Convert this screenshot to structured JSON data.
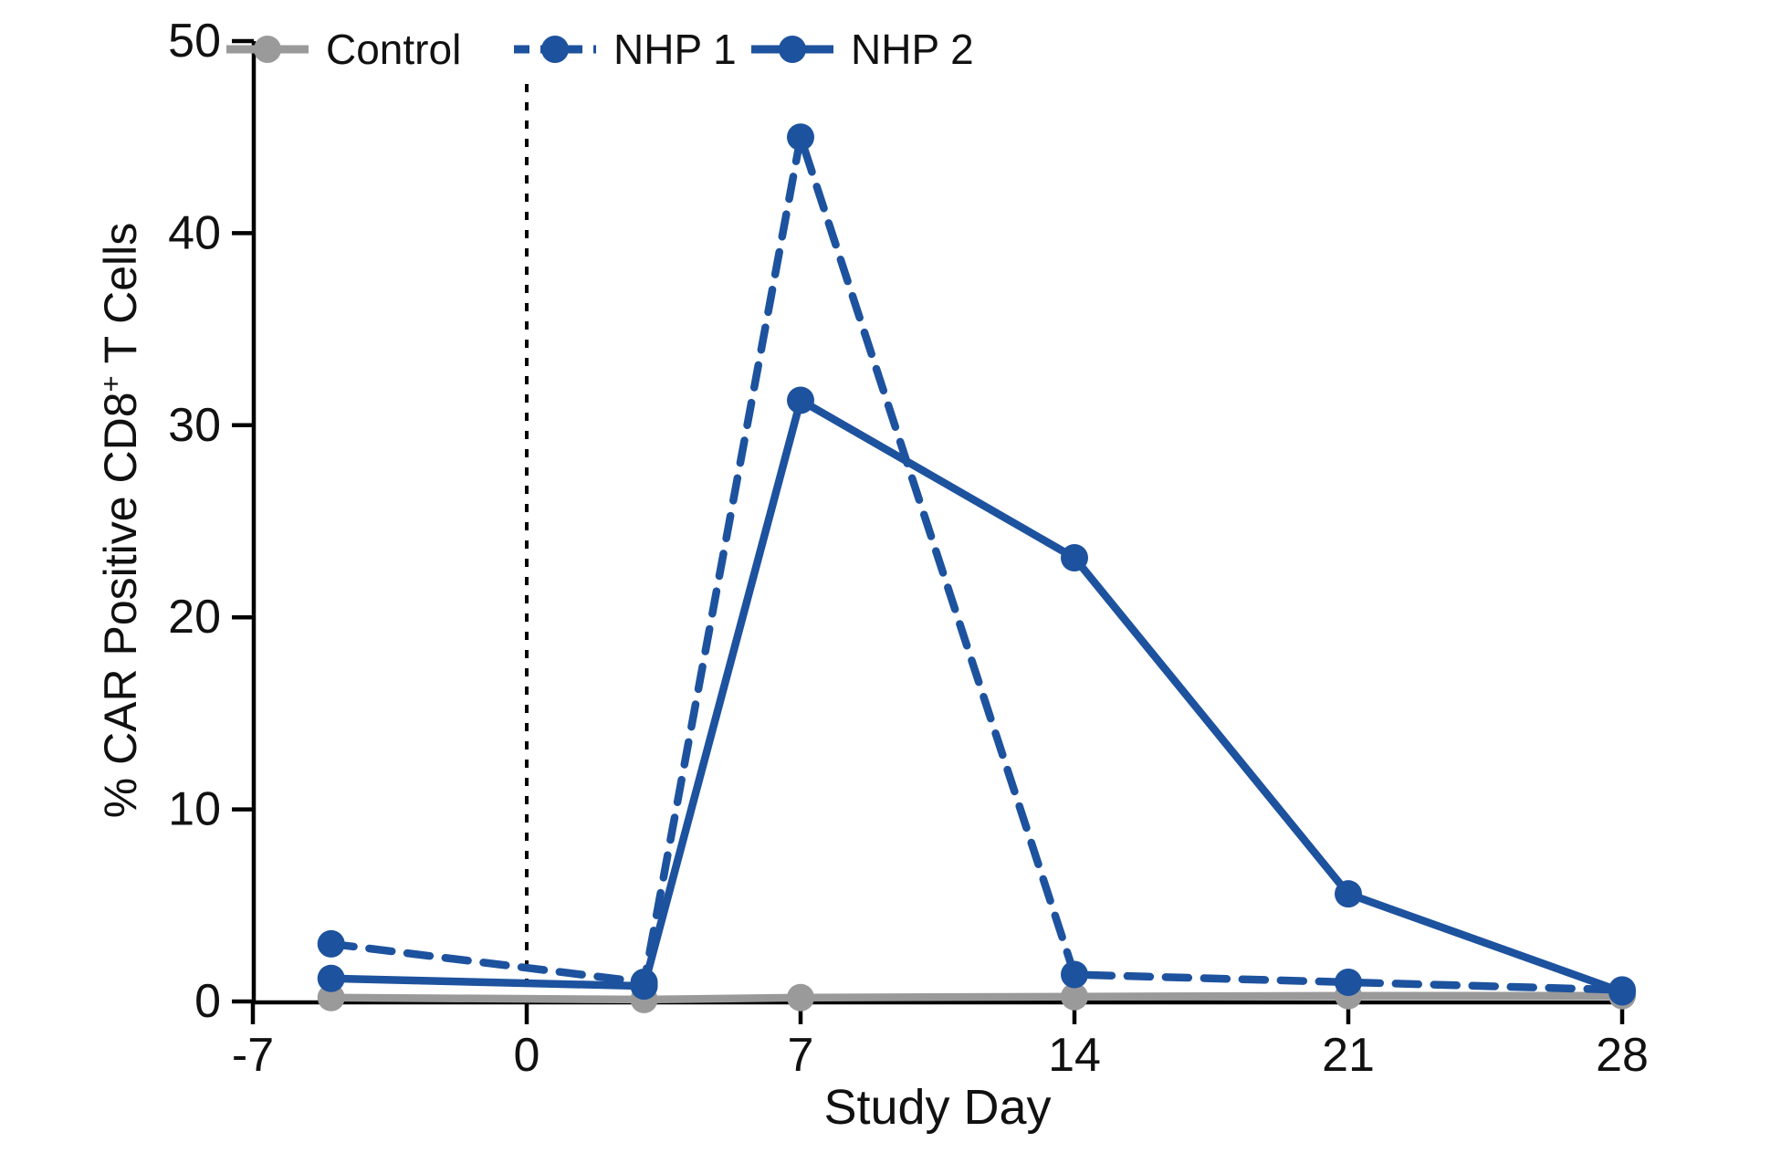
{
  "chart_data": {
    "type": "line",
    "title": "",
    "xlabel": "Study Day",
    "ylabel": "% CAR Positive CD8+ T Cells",
    "ylabel_parts": [
      "% CAR Positive CD8",
      "+",
      " T Cells"
    ],
    "x_ticks": [
      -7,
      0,
      7,
      14,
      21,
      28
    ],
    "y_ticks": [
      0,
      10,
      20,
      30,
      40,
      50
    ],
    "xlim": [
      -7,
      28
    ],
    "ylim": [
      0,
      50
    ],
    "grid": "off",
    "legend_position": "top-left-inside",
    "event_line_x": 0,
    "axis_color": "#000000",
    "draw_order": [
      0,
      2,
      1
    ],
    "series": [
      {
        "name": "Control",
        "color": "#9a9a9a",
        "style": "solid",
        "marker": "circle",
        "x": [
          -5,
          3,
          7,
          14,
          21,
          28
        ],
        "y": [
          0.2,
          0.1,
          0.2,
          0.25,
          0.3,
          0.3
        ]
      },
      {
        "name": "NHP 1",
        "color": "#1d529e",
        "style": "dashed",
        "marker": "circle",
        "x": [
          -5,
          3,
          7,
          14,
          21,
          28
        ],
        "y": [
          3.0,
          1.0,
          45.0,
          1.4,
          1.0,
          0.6
        ]
      },
      {
        "name": "NHP 2",
        "color": "#1d529e",
        "style": "solid",
        "marker": "circle",
        "x": [
          -5,
          3,
          7,
          14,
          21,
          28
        ],
        "y": [
          1.2,
          0.8,
          31.3,
          23.1,
          5.6,
          0.5
        ]
      }
    ]
  }
}
